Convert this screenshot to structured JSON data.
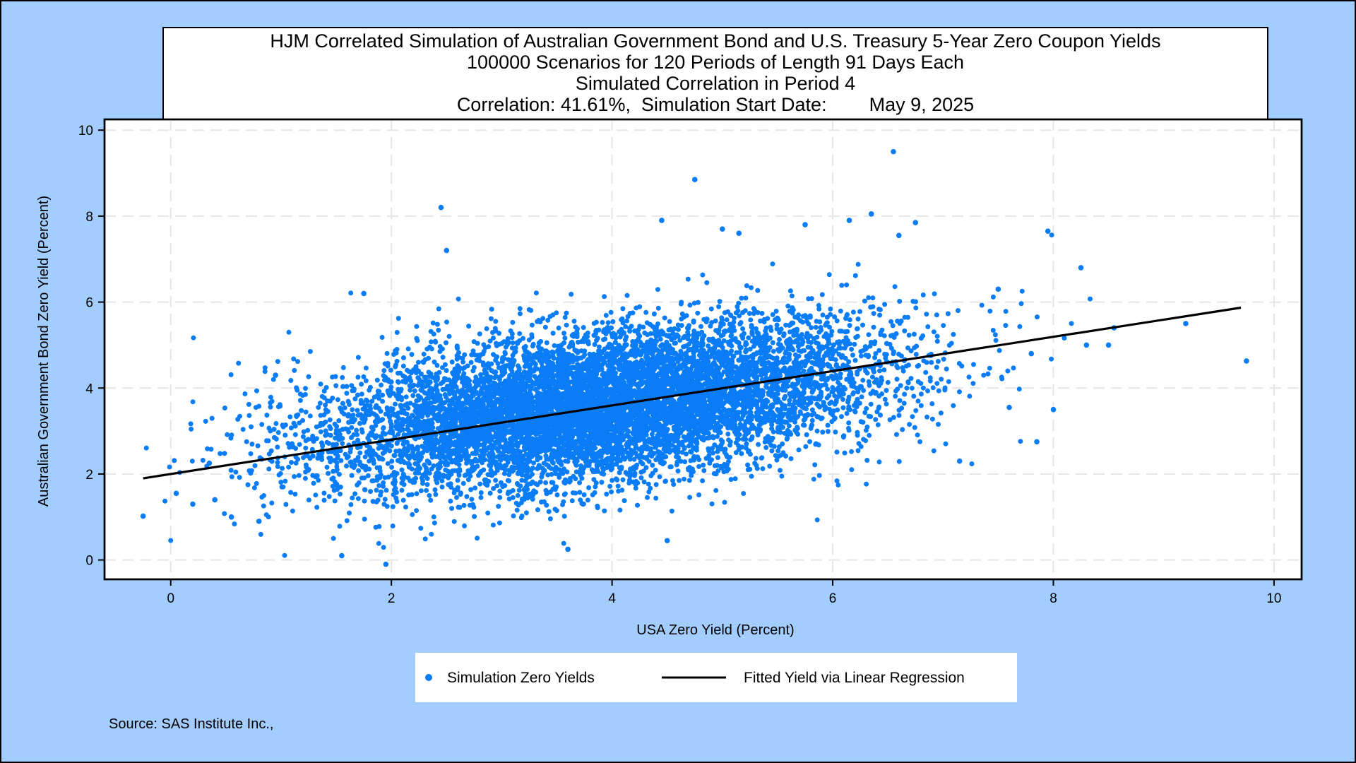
{
  "colors": {
    "background": "#a3ccff",
    "plot_background": "#ffffff",
    "points": "#0a7cf5",
    "fit_line": "#000000",
    "grid": "#e6e6e6"
  },
  "chart_data": {
    "type": "scatter",
    "title_lines": [
      "HJM Correlated Simulation of Australian Government Bond and U.S. Treasury 5-Year Zero Coupon Yields",
      "100000 Scenarios for 120 Periods of Length 91 Days Each",
      "Simulated Correlation in Period 4",
      "Correlation: 41.61%,  Simulation Start Date:        May 9, 2025"
    ],
    "xlabel": "USA Zero Yield (Percent)",
    "ylabel": "Australian Government Bond Zero Yield (Percent)",
    "xlim": [
      -0.6,
      10.25
    ],
    "ylim": [
      -0.45,
      10.25
    ],
    "xticks": [
      0,
      2,
      4,
      6,
      8,
      10
    ],
    "yticks": [
      0,
      2,
      4,
      6,
      8,
      10
    ],
    "grid": true,
    "correlation_percent": 41.61,
    "series": [
      {
        "name": "Simulation Zero Yields",
        "kind": "scatter",
        "distribution": {
          "count": 100000,
          "center": [
            3.9,
            3.6
          ],
          "x_std": 1.25,
          "y_std": 0.95,
          "correlation": 0.4161,
          "x_range": [
            -0.25,
            9.75
          ],
          "y_range": [
            -0.1,
            9.5
          ]
        },
        "outliers": [
          {
            "x": -0.25,
            "y": 1.02
          },
          {
            "x": 0.05,
            "y": 1.55
          },
          {
            "x": 0.2,
            "y": 1.3
          },
          {
            "x": 0.35,
            "y": 2.25
          },
          {
            "x": 0.4,
            "y": 1.4
          },
          {
            "x": 0.55,
            "y": 1.0
          },
          {
            "x": 0.8,
            "y": 0.9
          },
          {
            "x": 0.95,
            "y": 4.3
          },
          {
            "x": 1.55,
            "y": 0.1
          },
          {
            "x": 1.95,
            "y": -0.1
          },
          {
            "x": 1.75,
            "y": 6.2
          },
          {
            "x": 2.45,
            "y": 8.2
          },
          {
            "x": 2.5,
            "y": 7.2
          },
          {
            "x": 3.6,
            "y": 0.25
          },
          {
            "x": 4.45,
            "y": 7.9
          },
          {
            "x": 4.5,
            "y": 0.45
          },
          {
            "x": 4.75,
            "y": 8.85
          },
          {
            "x": 5.0,
            "y": 7.7
          },
          {
            "x": 5.15,
            "y": 7.6
          },
          {
            "x": 5.75,
            "y": 7.8
          },
          {
            "x": 6.15,
            "y": 7.9
          },
          {
            "x": 6.35,
            "y": 8.05
          },
          {
            "x": 6.55,
            "y": 9.5
          },
          {
            "x": 6.6,
            "y": 7.55
          },
          {
            "x": 6.75,
            "y": 7.85
          },
          {
            "x": 7.15,
            "y": 2.3
          },
          {
            "x": 7.5,
            "y": 6.3
          },
          {
            "x": 7.6,
            "y": 3.55
          },
          {
            "x": 7.8,
            "y": 4.8
          },
          {
            "x": 7.85,
            "y": 2.75
          },
          {
            "x": 7.95,
            "y": 7.65
          },
          {
            "x": 8.0,
            "y": 3.5
          },
          {
            "x": 8.25,
            "y": 6.8
          },
          {
            "x": 8.3,
            "y": 5.0
          },
          {
            "x": 8.5,
            "y": 5.0
          },
          {
            "x": 8.55,
            "y": 5.4
          },
          {
            "x": 9.2,
            "y": 5.5
          },
          {
            "x": 9.75,
            "y": 4.63
          }
        ]
      },
      {
        "name": "Fitted Yield via Linear Regression",
        "kind": "line",
        "x": [
          -0.25,
          9.7
        ],
        "y": [
          1.9,
          5.87
        ]
      }
    ],
    "legend_position": "bottom-center"
  },
  "source": "Source: SAS Institute Inc.,"
}
